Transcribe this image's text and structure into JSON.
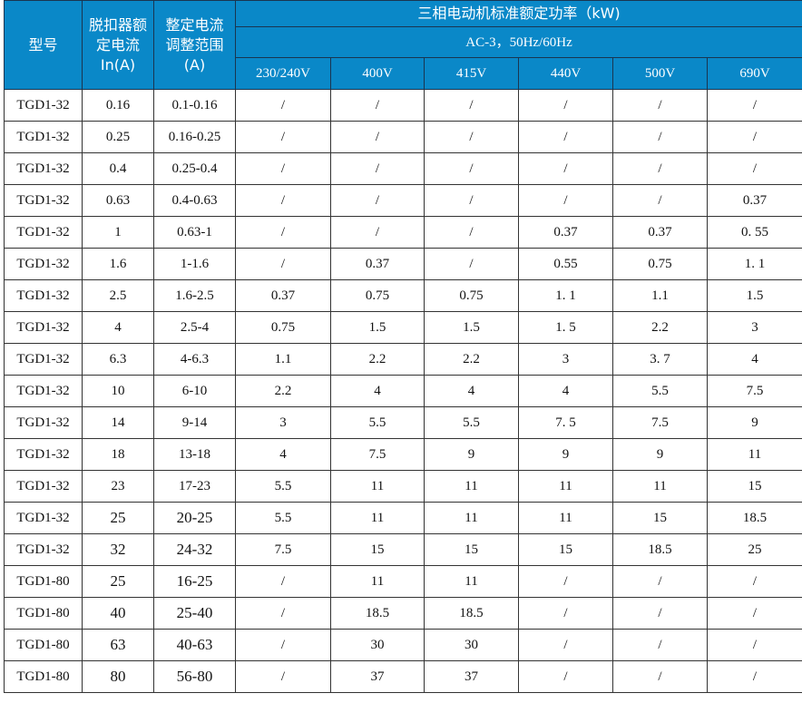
{
  "header": {
    "model": "型号",
    "rated_current": "脱扣器额定电流 In(A)",
    "setting_range": "整定电流调整范围(A)",
    "power_title": "三相电动机标准额定功率（kW)",
    "power_subtitle": "AC-3，50Hz/60Hz",
    "voltages": [
      "230/240V",
      "400V",
      "415V",
      "440V",
      "500V",
      "690V"
    ]
  },
  "colors": {
    "header_bg": "#0a88c8",
    "header_text": "#ffffff"
  },
  "rows": [
    [
      "TGD1-32",
      "0.16",
      "0.1-0.16",
      "/",
      "/",
      "/",
      "/",
      "/",
      "/"
    ],
    [
      "TGD1-32",
      "0.25",
      "0.16-0.25",
      "/",
      "/",
      "/",
      "/",
      "/",
      "/"
    ],
    [
      "TGD1-32",
      "0.4",
      "0.25-0.4",
      "/",
      "/",
      "/",
      "/",
      "/",
      "/"
    ],
    [
      "TGD1-32",
      "0.63",
      "0.4-0.63",
      "/",
      "/",
      "/",
      "/",
      "/",
      "0.37"
    ],
    [
      "TGD1-32",
      "1",
      "0.63-1",
      "/",
      "/",
      "/",
      "0.37",
      "0.37",
      "0.  55"
    ],
    [
      "TGD1-32",
      "1.6",
      "1-1.6",
      "/",
      "0.37",
      "/",
      "0.55",
      "0.75",
      "1.  1"
    ],
    [
      "TGD1-32",
      "2.5",
      "1.6-2.5",
      "0.37",
      "0.75",
      "0.75",
      "1.  1",
      "1.1",
      "1.5"
    ],
    [
      "TGD1-32",
      "4",
      "2.5-4",
      "0.75",
      "1.5",
      "1.5",
      "1.  5",
      "2.2",
      "3"
    ],
    [
      "TGD1-32",
      "6.3",
      "4-6.3",
      "1.1",
      "2.2",
      "2.2",
      "3",
      "3.  7",
      "4"
    ],
    [
      "TGD1-32",
      "10",
      "6-10",
      "2.2",
      "4",
      "4",
      "4",
      "5.5",
      "7.5"
    ],
    [
      "TGD1-32",
      "14",
      "9-14",
      "3",
      "5.5",
      "5.5",
      "7.  5",
      "7.5",
      "9"
    ],
    [
      "TGD1-32",
      "18",
      "13-18",
      "4",
      "7.5",
      "9",
      "9",
      "9",
      "11"
    ],
    [
      "TGD1-32",
      "23",
      "17-23",
      "5.5",
      "11",
      "11",
      "11",
      "11",
      "15"
    ],
    [
      "TGD1-32",
      "25",
      "20-25",
      "5.5",
      "11",
      "11",
      "11",
      "15",
      "18.5"
    ],
    [
      "TGD1-32",
      "32",
      "24-32",
      "7.5",
      "15",
      "15",
      "15",
      "18.5",
      "25"
    ],
    [
      "TGD1-80",
      "25",
      "16-25",
      "/",
      "11",
      "11",
      "/",
      "/",
      "/"
    ],
    [
      "TGD1-80",
      "40",
      "25-40",
      "/",
      "18.5",
      "18.5",
      "/",
      "/",
      "/"
    ],
    [
      "TGD1-80",
      "63",
      "40-63",
      "/",
      "30",
      "30",
      "/",
      "/",
      "/"
    ],
    [
      "TGD1-80",
      "80",
      "56-80",
      "/",
      "37",
      "37",
      "/",
      "/",
      "/"
    ]
  ]
}
